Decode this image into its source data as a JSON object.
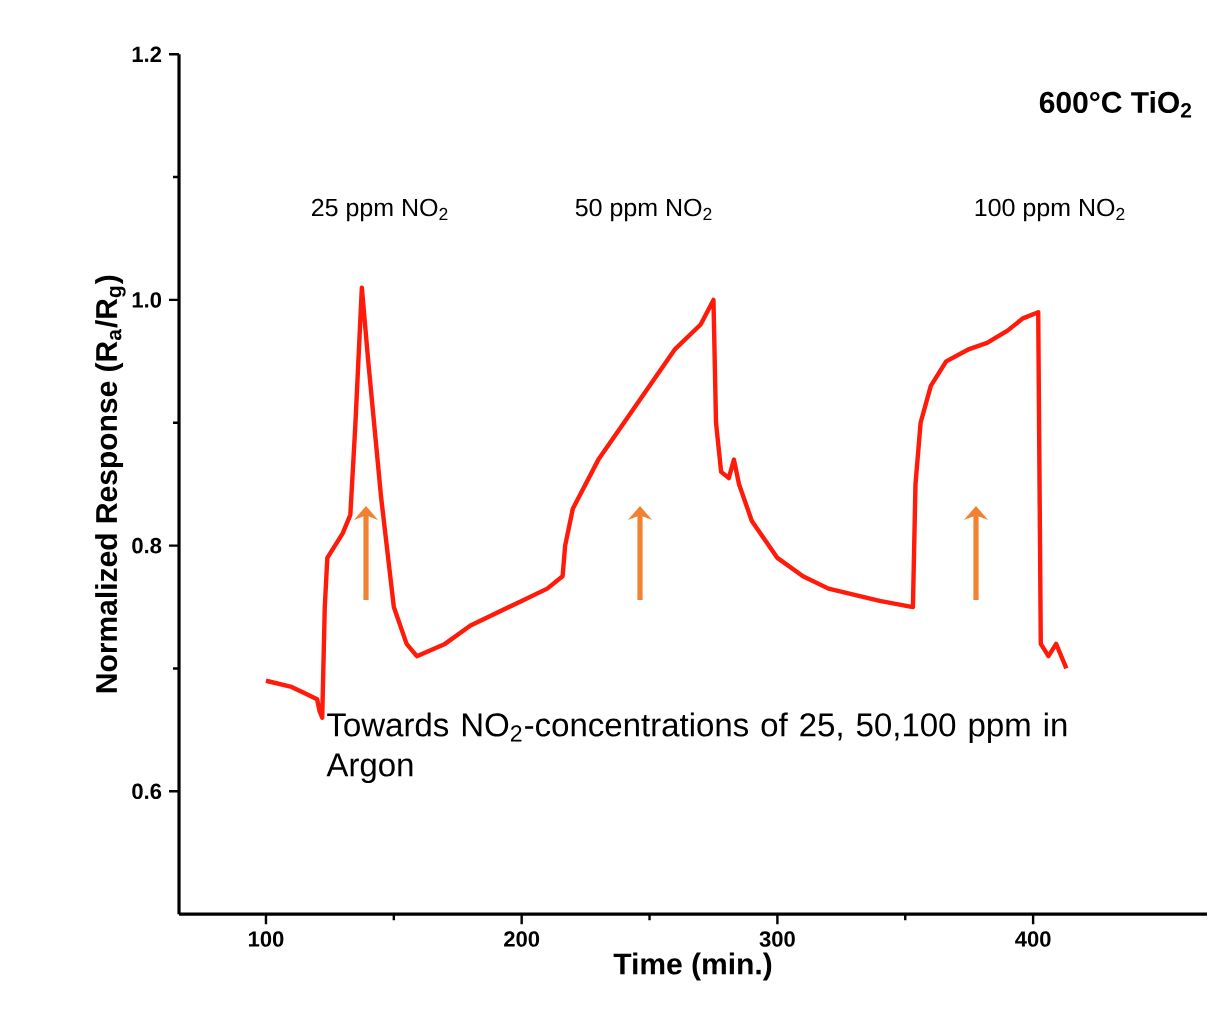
{
  "chart_data": {
    "type": "line",
    "title": "600°C TiO$_{2}$",
    "xlabel": "Time (min.)",
    "ylabel": "Normalized Response (R$_{a}$/R$_{g}$)",
    "x": [
      100,
      110,
      115,
      120,
      121,
      122,
      123,
      124,
      127,
      130,
      133,
      135,
      137.5,
      140,
      145,
      150,
      155,
      159,
      170,
      180,
      190,
      200,
      210,
      216,
      217,
      220,
      230,
      240,
      250,
      260,
      270,
      275,
      276,
      278,
      281,
      283,
      285,
      290,
      300,
      310,
      320,
      330,
      340,
      353,
      354,
      356,
      360,
      366,
      375,
      382,
      390,
      396,
      402,
      403,
      406,
      409,
      413
    ],
    "series": [
      {
        "color": "#ff1a0a",
        "values": [
          0.69,
          0.685,
          0.68,
          0.675,
          0.665,
          0.66,
          0.75,
          0.79,
          0.8,
          0.81,
          0.825,
          0.9,
          1.01,
          0.95,
          0.84,
          0.75,
          0.72,
          0.71,
          0.72,
          0.735,
          0.745,
          0.755,
          0.765,
          0.775,
          0.8,
          0.83,
          0.87,
          0.9,
          0.93,
          0.96,
          0.98,
          1.0,
          0.9,
          0.86,
          0.855,
          0.87,
          0.85,
          0.82,
          0.79,
          0.775,
          0.765,
          0.76,
          0.755,
          0.75,
          0.85,
          0.9,
          0.93,
          0.95,
          0.96,
          0.965,
          0.975,
          0.985,
          0.99,
          0.72,
          0.71,
          0.72,
          0.7
        ]
      }
    ],
    "xlim": [
      66,
      468
    ],
    "ylim": [
      0.5,
      1.2
    ],
    "xticks": [
      100,
      200,
      300,
      400
    ],
    "yticks": [
      0.6,
      0.8,
      {
        "value": 1.0,
        "label": "1.0"
      },
      1.2
    ],
    "annotations": [
      "25 ppm NO$_{2}$",
      "50 ppm NO$_{2}$",
      "100 ppm NO$_{2}$",
      "Towards NO$_{2}$-concentrations of 25, 50,100 ppm in Argon"
    ],
    "marker": "none",
    "line_style": "solid"
  }
}
